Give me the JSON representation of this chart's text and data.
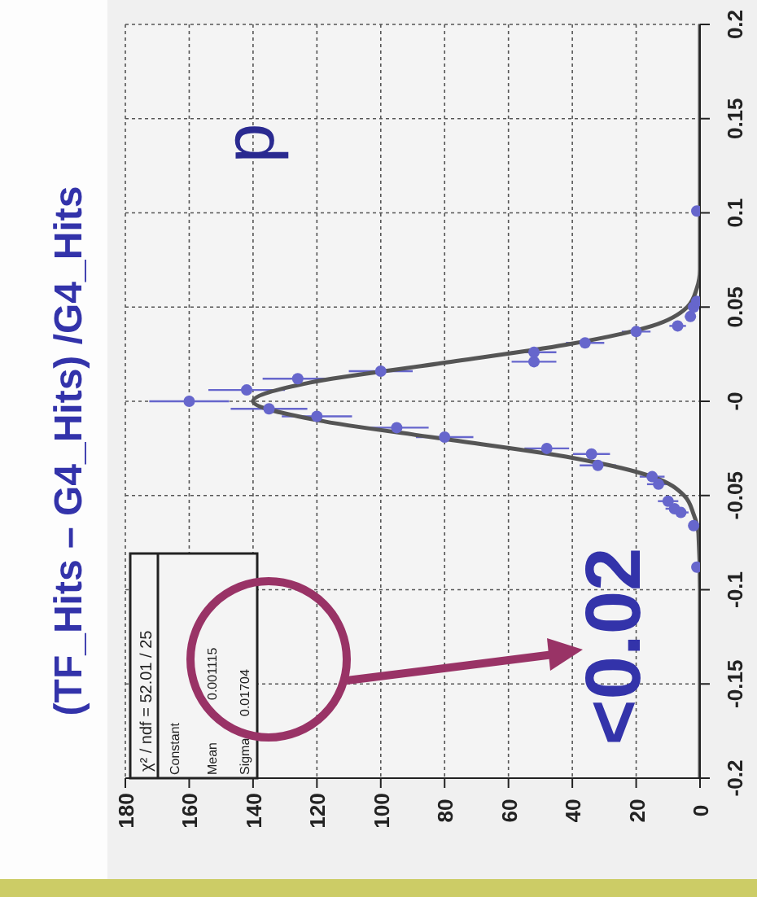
{
  "chart_data": {
    "type": "scatter",
    "title": "(TF_Hits – G4_Hits) /G4_Hits",
    "xlim": [
      180,
      0
    ],
    "xticks": [
      180,
      160,
      140,
      120,
      100,
      80,
      60,
      40,
      20,
      0
    ],
    "ylim": [
      -0.2,
      0.2
    ],
    "yticks": [
      -0.2,
      -0.15,
      -0.1,
      -0.05,
      {
        "value": 0,
        "label": "-0"
      },
      0.05,
      0.1,
      0.15,
      0.2
    ],
    "grid": true,
    "marker": "circle",
    "series": [
      {
        "color": "#6666cc",
        "x": [
          1,
          2,
          6,
          8,
          10,
          13,
          15,
          32,
          34,
          48,
          80,
          95,
          120,
          135,
          160,
          142,
          126,
          100,
          52,
          52,
          36,
          20,
          7,
          3,
          2,
          1,
          1
        ],
        "values": [
          -0.088,
          -0.066,
          -0.059,
          -0.057,
          -0.053,
          -0.044,
          -0.04,
          -0.034,
          -0.028,
          -0.025,
          -0.019,
          -0.014,
          -0.008,
          -0.004,
          0.0,
          0.006,
          0.012,
          0.016,
          0.021,
          0.026,
          0.031,
          0.037,
          0.04,
          0.045,
          0.05,
          0.053,
          0.101
        ],
        "xerrors": [
          1,
          1.4,
          2.4,
          2.8,
          3.2,
          3.6,
          3.9,
          5.7,
          5.8,
          7,
          9,
          10,
          11,
          12,
          12.5,
          12,
          11,
          10,
          7,
          7,
          6,
          4.5,
          2.6,
          1.7,
          1.4,
          1,
          1
        ]
      },
      {
        "type": "line",
        "color": "#555555",
        "marker": "none",
        "x": [
          0,
          0,
          0.5,
          2,
          5,
          15,
          40,
          80,
          120,
          140,
          122,
          82,
          42,
          15,
          4,
          1,
          0,
          0
        ],
        "values": [
          -0.2,
          -0.1,
          -0.07,
          -0.06,
          -0.05,
          -0.04,
          -0.03,
          -0.02,
          -0.01,
          0.0,
          0.01,
          0.02,
          0.03,
          0.04,
          0.05,
          0.06,
          0.07,
          0.2
        ]
      }
    ],
    "annotations": [
      "p",
      "<0.02",
      "χ² / ndf = 52.01 / 25",
      "Constant",
      "Mean",
      "0.001115",
      "Sigma",
      "0.01704"
    ]
  }
}
